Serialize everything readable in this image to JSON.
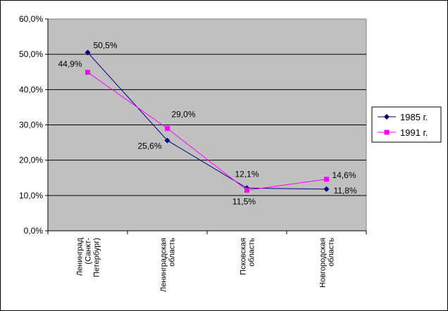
{
  "chart_data": {
    "type": "line",
    "categories": [
      [
        "Ленинград",
        "(Санкт-",
        "Петербург)"
      ],
      [
        "Ленинградская",
        "область"
      ],
      [
        "Псковская",
        "область"
      ],
      [
        "Новгородская",
        "область"
      ]
    ],
    "series": [
      {
        "name": "1985 г.",
        "color": "#000080",
        "marker": "diamond",
        "values": [
          50.5,
          25.6,
          12.1,
          11.8
        ],
        "labels": [
          "50,5%",
          "25,6%",
          "12,1%",
          "11,8%"
        ]
      },
      {
        "name": "1991 г.",
        "color": "#ff00ff",
        "marker": "square",
        "values": [
          44.9,
          29.0,
          11.5,
          14.6
        ],
        "labels": [
          "44,9%",
          "29,0%",
          "11,5%",
          "14,6%"
        ]
      }
    ],
    "yticks": [
      "0,0%",
      "10,0%",
      "20,0%",
      "30,0%",
      "40,0%",
      "50,0%",
      "60,0%"
    ],
    "ylim": [
      0,
      60
    ],
    "grid": true,
    "plot_background": "#c0c0c0",
    "legend_position": "right"
  }
}
